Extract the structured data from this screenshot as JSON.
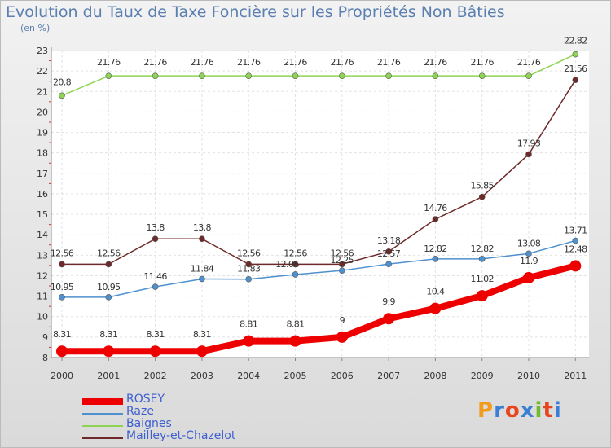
{
  "title": "Evolution du Taux de Taxe Foncière sur les Propriétés Non Bâties",
  "unit_label": "(en %)",
  "logo": {
    "letters": [
      "P",
      "r",
      "o",
      "x",
      "i",
      "t",
      "i"
    ],
    "colors": [
      "#f29b1d",
      "#3a7fd5",
      "#e8451e",
      "#3a7fd5",
      "#6dbb2e",
      "#e8451e",
      "#3a7fd5"
    ]
  },
  "chart_data": {
    "type": "line",
    "title": "Evolution du Taux de Taxe Foncière sur les Propriétés Non Bâties",
    "ylabel": "(en %)",
    "xlabel": "",
    "categories": [
      "2000",
      "2001",
      "2002",
      "2003",
      "2004",
      "2005",
      "2006",
      "2007",
      "2008",
      "2009",
      "2010",
      "2011"
    ],
    "ylim": [
      8,
      23
    ],
    "yticks": [
      "8",
      "9",
      "10",
      "11",
      "12",
      "13",
      "14",
      "15",
      "16",
      "17",
      "18",
      "19",
      "20",
      "21",
      "22",
      "23"
    ],
    "grid": true,
    "legend_position": "bottom-left",
    "series": [
      {
        "name": "ROSEY",
        "color": "#ee0000",
        "values": [
          8.31,
          8.31,
          8.31,
          8.31,
          8.81,
          8.81,
          9,
          9.9,
          10.4,
          11.02,
          11.9,
          12.48
        ],
        "labels": [
          "8.31",
          "8.31",
          "8.31",
          "8.31",
          "8.81",
          "8.81",
          "9",
          "9.9",
          "10.4",
          "11.02",
          "11.9",
          "12.48"
        ]
      },
      {
        "name": "Raze",
        "color": "#4f91cf",
        "values": [
          10.95,
          10.95,
          11.46,
          11.84,
          11.83,
          12.06,
          12.25,
          12.57,
          12.82,
          12.82,
          13.08,
          13.71
        ],
        "labels": [
          "10.95",
          "10.95",
          "11.46",
          "11.84",
          "11.83",
          "12.06",
          "12.25",
          "12.57",
          "12.82",
          "12.82",
          "13.08",
          "13.71"
        ]
      },
      {
        "name": "Baignes",
        "color": "#8ed454",
        "values": [
          20.8,
          21.76,
          21.76,
          21.76,
          21.76,
          21.76,
          21.76,
          21.76,
          21.76,
          21.76,
          21.76,
          22.82
        ],
        "labels": [
          "20.8",
          "21.76",
          "21.76",
          "21.76",
          "21.76",
          "21.76",
          "21.76",
          "21.76",
          "21.76",
          "21.76",
          "21.76",
          "22.82"
        ]
      },
      {
        "name": "Mailley-et-Chazelot",
        "color": "#6e2a2a",
        "values": [
          12.56,
          12.56,
          13.8,
          13.8,
          12.56,
          12.56,
          12.56,
          13.18,
          14.76,
          15.85,
          17.93,
          21.56
        ],
        "labels": [
          "12.56",
          "12.56",
          "13.8",
          "13.8",
          "12.56",
          "12.56",
          "12.56",
          "13.18",
          "14.76",
          "15.85",
          "17.93",
          "21.56"
        ]
      }
    ]
  }
}
